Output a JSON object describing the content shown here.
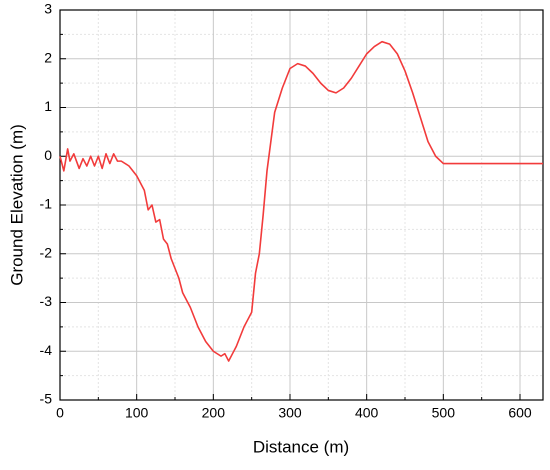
{
  "chart_data": {
    "type": "line",
    "xlabel": "Distance (m)",
    "ylabel": "Ground Elevation (m)",
    "x": [
      0,
      5,
      10,
      13,
      18,
      25,
      30,
      35,
      40,
      45,
      50,
      55,
      60,
      65,
      70,
      75,
      80,
      90,
      100,
      110,
      115,
      120,
      125,
      130,
      135,
      140,
      145,
      150,
      155,
      160,
      170,
      180,
      190,
      200,
      210,
      215,
      220,
      225,
      230,
      240,
      245,
      250,
      255,
      260,
      265,
      270,
      280,
      290,
      300,
      310,
      320,
      330,
      340,
      350,
      360,
      370,
      380,
      390,
      400,
      410,
      420,
      430,
      440,
      450,
      460,
      470,
      480,
      490,
      500,
      550,
      600,
      630
    ],
    "series": [
      {
        "name": "Ground Elevation",
        "color": "#f23b3b",
        "values": [
          0,
          -0.3,
          0.15,
          -0.1,
          0.05,
          -0.25,
          -0.05,
          -0.2,
          0,
          -0.2,
          0,
          -0.25,
          0.05,
          -0.15,
          0.05,
          -0.1,
          -0.1,
          -0.2,
          -0.4,
          -0.7,
          -1.1,
          -1.0,
          -1.35,
          -1.3,
          -1.7,
          -1.8,
          -2.1,
          -2.3,
          -2.5,
          -2.8,
          -3.1,
          -3.5,
          -3.8,
          -4.0,
          -4.1,
          -4.05,
          -4.2,
          -4.05,
          -3.9,
          -3.5,
          -3.35,
          -3.2,
          -2.4,
          -2.0,
          -1.2,
          -0.3,
          0.9,
          1.4,
          1.8,
          1.9,
          1.85,
          1.7,
          1.5,
          1.35,
          1.3,
          1.4,
          1.6,
          1.85,
          2.1,
          2.25,
          2.35,
          2.3,
          2.1,
          1.75,
          1.3,
          0.8,
          0.3,
          0,
          -0.15,
          -0.15,
          -0.15,
          -0.15
        ]
      }
    ],
    "xlim": [
      0,
      630
    ],
    "xticks": [
      0,
      100,
      200,
      300,
      400,
      500,
      600
    ],
    "xminorticks": [
      50,
      150,
      250,
      350,
      450,
      550
    ],
    "ylim": [
      -5,
      3
    ],
    "yticks": [
      -5,
      -4,
      -3,
      -2,
      -1,
      0,
      1,
      2,
      3
    ],
    "yminorticks": [
      -4.5,
      -3.5,
      -2.5,
      -1.5,
      -0.5,
      0.5,
      1.5,
      2.5
    ],
    "grid": true
  }
}
